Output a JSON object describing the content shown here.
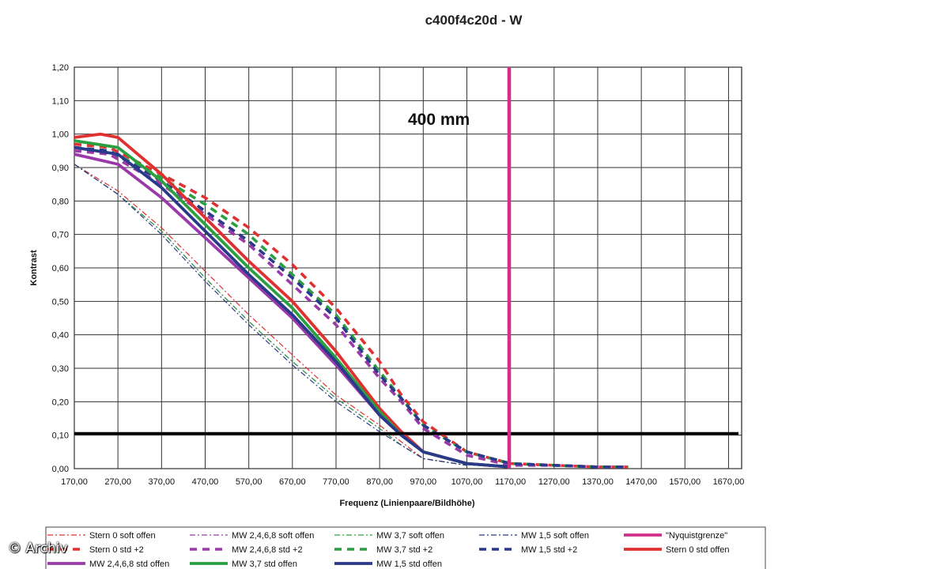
{
  "chart_data": {
    "type": "line",
    "title": "c400f4c20d - W",
    "annotation": "400 mm",
    "xlabel": "Frequenz (Linienpaare/Bildhöhe)",
    "ylabel": "Kontrast",
    "xlim": [
      170,
      1700
    ],
    "ylim": [
      0,
      1.2
    ],
    "x_ticks": [
      "170,00",
      "270,00",
      "370,00",
      "470,00",
      "570,00",
      "670,00",
      "770,00",
      "870,00",
      "970,00",
      "1070,00",
      "1170,00",
      "1270,00",
      "1370,00",
      "1470,00",
      "1570,00",
      "1670,00"
    ],
    "y_ticks": [
      "0,00",
      "0,10",
      "0,20",
      "0,30",
      "0,40",
      "0,50",
      "0,60",
      "0,70",
      "0,80",
      "0,90",
      "1,00",
      "1,10",
      "1,20"
    ],
    "grid": true,
    "legend_position": "bottom",
    "reference_lines": {
      "horizontal_y": 0.105,
      "nyquist_x": 1167
    },
    "series": [
      {
        "name": "Stern 0 soft offen",
        "style": "dashdot-thin",
        "color": "#e03030",
        "points": [
          [
            170,
            0.91
          ],
          [
            270,
            0.83
          ],
          [
            370,
            0.72
          ],
          [
            470,
            0.59
          ],
          [
            570,
            0.46
          ],
          [
            670,
            0.34
          ],
          [
            770,
            0.22
          ],
          [
            870,
            0.13
          ],
          [
            920,
            0.08
          ],
          [
            970,
            0.03
          ],
          [
            1070,
            0.01
          ]
        ]
      },
      {
        "name": "MW 2,4,6,8 soft offen",
        "style": "dashdot-thin",
        "color": "#9a3aa8",
        "points": [
          [
            170,
            0.91
          ],
          [
            270,
            0.82
          ],
          [
            370,
            0.71
          ],
          [
            470,
            0.57
          ],
          [
            570,
            0.44
          ],
          [
            670,
            0.32
          ],
          [
            770,
            0.21
          ],
          [
            870,
            0.12
          ],
          [
            920,
            0.07
          ],
          [
            970,
            0.03
          ],
          [
            1070,
            0.01
          ]
        ]
      },
      {
        "name": "MW 3,7 soft offen",
        "style": "dashdot-thin",
        "color": "#2aa040",
        "points": [
          [
            170,
            0.91
          ],
          [
            270,
            0.82
          ],
          [
            370,
            0.71
          ],
          [
            470,
            0.57
          ],
          [
            570,
            0.44
          ],
          [
            670,
            0.32
          ],
          [
            770,
            0.21
          ],
          [
            870,
            0.12
          ],
          [
            920,
            0.07
          ],
          [
            970,
            0.03
          ],
          [
            1070,
            0.01
          ]
        ]
      },
      {
        "name": "MW 1,5 soft offen",
        "style": "dashdot-thin",
        "color": "#2a3a8a",
        "points": [
          [
            170,
            0.91
          ],
          [
            270,
            0.82
          ],
          [
            370,
            0.7
          ],
          [
            470,
            0.56
          ],
          [
            570,
            0.43
          ],
          [
            670,
            0.31
          ],
          [
            770,
            0.2
          ],
          [
            870,
            0.11
          ],
          [
            920,
            0.07
          ],
          [
            970,
            0.03
          ],
          [
            1070,
            0.01
          ]
        ]
      },
      {
        "name": "\"Nyquistgrenze\"",
        "style": "solid-thick",
        "color": "#d0308a",
        "points": []
      },
      {
        "name": "Stern 0 std +2",
        "style": "dashed-thick",
        "color": "#e03030",
        "points": [
          [
            170,
            0.97
          ],
          [
            250,
            0.96
          ],
          [
            370,
            0.88
          ],
          [
            470,
            0.81
          ],
          [
            570,
            0.72
          ],
          [
            670,
            0.61
          ],
          [
            770,
            0.48
          ],
          [
            870,
            0.32
          ],
          [
            920,
            0.22
          ],
          [
            970,
            0.14
          ],
          [
            1070,
            0.05
          ],
          [
            1170,
            0.015
          ],
          [
            1270,
            0.01
          ],
          [
            1370,
            0.005
          ],
          [
            1440,
            0.005
          ]
        ]
      },
      {
        "name": "MW 2,4,6,8 std +2",
        "style": "dashed-thick",
        "color": "#9a3aa8",
        "points": [
          [
            170,
            0.95
          ],
          [
            250,
            0.94
          ],
          [
            370,
            0.85
          ],
          [
            470,
            0.76
          ],
          [
            570,
            0.67
          ],
          [
            670,
            0.55
          ],
          [
            770,
            0.43
          ],
          [
            870,
            0.27
          ],
          [
            920,
            0.2
          ],
          [
            970,
            0.12
          ],
          [
            1070,
            0.04
          ],
          [
            1170,
            0.01
          ],
          [
            1270,
            0.01
          ],
          [
            1370,
            0.005
          ],
          [
            1440,
            0.005
          ]
        ]
      },
      {
        "name": "MW 3,7 std +2",
        "style": "dashed-thick",
        "color": "#2aa040",
        "points": [
          [
            170,
            0.96
          ],
          [
            250,
            0.95
          ],
          [
            370,
            0.87
          ],
          [
            470,
            0.79
          ],
          [
            570,
            0.7
          ],
          [
            670,
            0.58
          ],
          [
            770,
            0.46
          ],
          [
            870,
            0.29
          ],
          [
            920,
            0.21
          ],
          [
            970,
            0.13
          ],
          [
            1070,
            0.05
          ],
          [
            1170,
            0.015
          ],
          [
            1270,
            0.01
          ],
          [
            1370,
            0.005
          ],
          [
            1440,
            0.005
          ]
        ]
      },
      {
        "name": "MW 1,5 std +2",
        "style": "dashed-thick",
        "color": "#2a3a8a",
        "points": [
          [
            170,
            0.96
          ],
          [
            250,
            0.95
          ],
          [
            370,
            0.86
          ],
          [
            470,
            0.77
          ],
          [
            570,
            0.68
          ],
          [
            670,
            0.57
          ],
          [
            770,
            0.45
          ],
          [
            870,
            0.28
          ],
          [
            920,
            0.21
          ],
          [
            970,
            0.13
          ],
          [
            1070,
            0.05
          ],
          [
            1170,
            0.015
          ],
          [
            1270,
            0.01
          ],
          [
            1370,
            0.005
          ],
          [
            1440,
            0.005
          ]
        ]
      },
      {
        "name": "Stern 0 std offen",
        "style": "solid-thick",
        "color": "#e03030",
        "points": [
          [
            170,
            0.99
          ],
          [
            230,
            1.0
          ],
          [
            270,
            0.99
          ],
          [
            370,
            0.88
          ],
          [
            470,
            0.75
          ],
          [
            570,
            0.62
          ],
          [
            670,
            0.5
          ],
          [
            770,
            0.35
          ],
          [
            870,
            0.18
          ],
          [
            920,
            0.11
          ],
          [
            970,
            0.05
          ],
          [
            1070,
            0.015
          ],
          [
            1170,
            0.005
          ]
        ]
      },
      {
        "name": "MW 2,4,6,8 std offen",
        "style": "solid-thick",
        "color": "#9a3aa8",
        "points": [
          [
            170,
            0.94
          ],
          [
            270,
            0.91
          ],
          [
            370,
            0.81
          ],
          [
            470,
            0.69
          ],
          [
            570,
            0.57
          ],
          [
            670,
            0.45
          ],
          [
            770,
            0.31
          ],
          [
            870,
            0.16
          ],
          [
            920,
            0.1
          ],
          [
            970,
            0.05
          ],
          [
            1070,
            0.015
          ],
          [
            1170,
            0.005
          ]
        ]
      },
      {
        "name": "MW 3,7 std offen",
        "style": "solid-thick",
        "color": "#2aa040",
        "points": [
          [
            170,
            0.98
          ],
          [
            270,
            0.96
          ],
          [
            370,
            0.86
          ],
          [
            470,
            0.73
          ],
          [
            570,
            0.6
          ],
          [
            670,
            0.48
          ],
          [
            770,
            0.33
          ],
          [
            870,
            0.17
          ],
          [
            920,
            0.1
          ],
          [
            970,
            0.05
          ],
          [
            1070,
            0.015
          ],
          [
            1170,
            0.005
          ]
        ]
      },
      {
        "name": "MW 1,5 std offen",
        "style": "solid-thick",
        "color": "#2a3a8a",
        "points": [
          [
            170,
            0.96
          ],
          [
            270,
            0.94
          ],
          [
            370,
            0.84
          ],
          [
            470,
            0.71
          ],
          [
            570,
            0.58
          ],
          [
            670,
            0.46
          ],
          [
            770,
            0.32
          ],
          [
            870,
            0.16
          ],
          [
            920,
            0.1
          ],
          [
            970,
            0.05
          ],
          [
            1070,
            0.015
          ],
          [
            1170,
            0.005
          ]
        ]
      }
    ]
  },
  "watermark": "© Archiv"
}
